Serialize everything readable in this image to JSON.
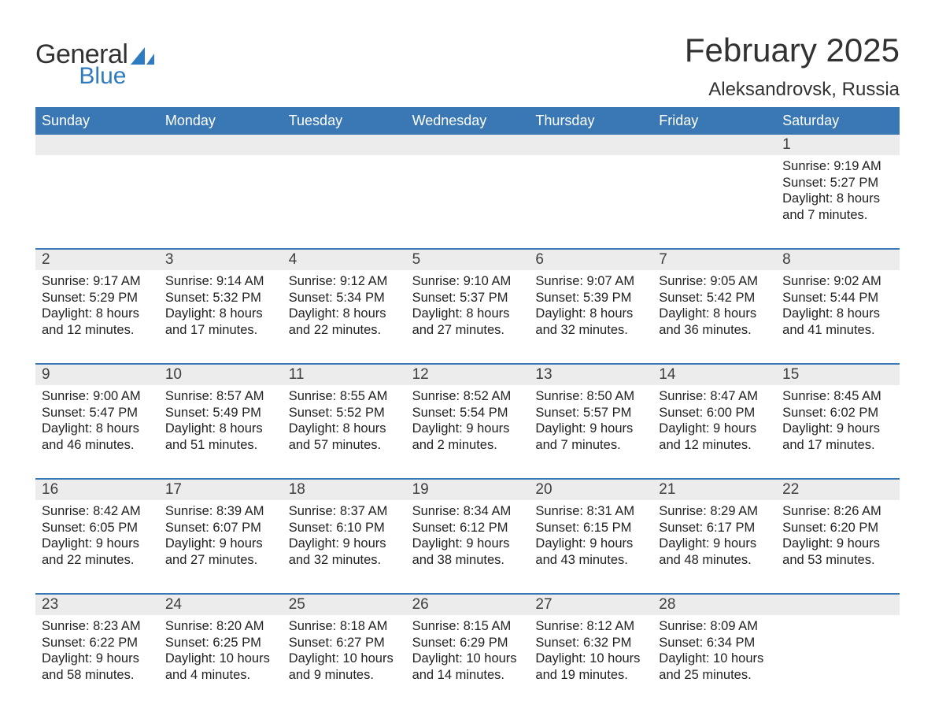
{
  "colors": {
    "header_bg": "#3a78b5",
    "header_text": "#ffffff",
    "daynum_bg": "#ececec",
    "text": "#222222",
    "divider": "#3a78b5",
    "logo_general": "#323232",
    "logo_blue": "#2f7bbf",
    "page_bg": "#ffffff"
  },
  "typography": {
    "title_fontsize": 42,
    "location_fontsize": 24,
    "dayname_fontsize": 18,
    "daynum_fontsize": 19,
    "body_fontsize": 16.5
  },
  "logo": {
    "general": "General",
    "blue": "Blue"
  },
  "title": "February 2025",
  "location": "Aleksandrovsk, Russia",
  "daynames": [
    "Sunday",
    "Monday",
    "Tuesday",
    "Wednesday",
    "Thursday",
    "Friday",
    "Saturday"
  ],
  "weeks": [
    {
      "nums": [
        "",
        "",
        "",
        "",
        "",
        "",
        "1"
      ],
      "cells": [
        {
          "sunrise": "",
          "sunset": "",
          "daylight": ""
        },
        {
          "sunrise": "",
          "sunset": "",
          "daylight": ""
        },
        {
          "sunrise": "",
          "sunset": "",
          "daylight": ""
        },
        {
          "sunrise": "",
          "sunset": "",
          "daylight": ""
        },
        {
          "sunrise": "",
          "sunset": "",
          "daylight": ""
        },
        {
          "sunrise": "",
          "sunset": "",
          "daylight": ""
        },
        {
          "sunrise": "Sunrise: 9:19 AM",
          "sunset": "Sunset: 5:27 PM",
          "daylight": "Daylight: 8 hours and 7 minutes."
        }
      ]
    },
    {
      "nums": [
        "2",
        "3",
        "4",
        "5",
        "6",
        "7",
        "8"
      ],
      "cells": [
        {
          "sunrise": "Sunrise: 9:17 AM",
          "sunset": "Sunset: 5:29 PM",
          "daylight": "Daylight: 8 hours and 12 minutes."
        },
        {
          "sunrise": "Sunrise: 9:14 AM",
          "sunset": "Sunset: 5:32 PM",
          "daylight": "Daylight: 8 hours and 17 minutes."
        },
        {
          "sunrise": "Sunrise: 9:12 AM",
          "sunset": "Sunset: 5:34 PM",
          "daylight": "Daylight: 8 hours and 22 minutes."
        },
        {
          "sunrise": "Sunrise: 9:10 AM",
          "sunset": "Sunset: 5:37 PM",
          "daylight": "Daylight: 8 hours and 27 minutes."
        },
        {
          "sunrise": "Sunrise: 9:07 AM",
          "sunset": "Sunset: 5:39 PM",
          "daylight": "Daylight: 8 hours and 32 minutes."
        },
        {
          "sunrise": "Sunrise: 9:05 AM",
          "sunset": "Sunset: 5:42 PM",
          "daylight": "Daylight: 8 hours and 36 minutes."
        },
        {
          "sunrise": "Sunrise: 9:02 AM",
          "sunset": "Sunset: 5:44 PM",
          "daylight": "Daylight: 8 hours and 41 minutes."
        }
      ]
    },
    {
      "nums": [
        "9",
        "10",
        "11",
        "12",
        "13",
        "14",
        "15"
      ],
      "cells": [
        {
          "sunrise": "Sunrise: 9:00 AM",
          "sunset": "Sunset: 5:47 PM",
          "daylight": "Daylight: 8 hours and 46 minutes."
        },
        {
          "sunrise": "Sunrise: 8:57 AM",
          "sunset": "Sunset: 5:49 PM",
          "daylight": "Daylight: 8 hours and 51 minutes."
        },
        {
          "sunrise": "Sunrise: 8:55 AM",
          "sunset": "Sunset: 5:52 PM",
          "daylight": "Daylight: 8 hours and 57 minutes."
        },
        {
          "sunrise": "Sunrise: 8:52 AM",
          "sunset": "Sunset: 5:54 PM",
          "daylight": "Daylight: 9 hours and 2 minutes."
        },
        {
          "sunrise": "Sunrise: 8:50 AM",
          "sunset": "Sunset: 5:57 PM",
          "daylight": "Daylight: 9 hours and 7 minutes."
        },
        {
          "sunrise": "Sunrise: 8:47 AM",
          "sunset": "Sunset: 6:00 PM",
          "daylight": "Daylight: 9 hours and 12 minutes."
        },
        {
          "sunrise": "Sunrise: 8:45 AM",
          "sunset": "Sunset: 6:02 PM",
          "daylight": "Daylight: 9 hours and 17 minutes."
        }
      ]
    },
    {
      "nums": [
        "16",
        "17",
        "18",
        "19",
        "20",
        "21",
        "22"
      ],
      "cells": [
        {
          "sunrise": "Sunrise: 8:42 AM",
          "sunset": "Sunset: 6:05 PM",
          "daylight": "Daylight: 9 hours and 22 minutes."
        },
        {
          "sunrise": "Sunrise: 8:39 AM",
          "sunset": "Sunset: 6:07 PM",
          "daylight": "Daylight: 9 hours and 27 minutes."
        },
        {
          "sunrise": "Sunrise: 8:37 AM",
          "sunset": "Sunset: 6:10 PM",
          "daylight": "Daylight: 9 hours and 32 minutes."
        },
        {
          "sunrise": "Sunrise: 8:34 AM",
          "sunset": "Sunset: 6:12 PM",
          "daylight": "Daylight: 9 hours and 38 minutes."
        },
        {
          "sunrise": "Sunrise: 8:31 AM",
          "sunset": "Sunset: 6:15 PM",
          "daylight": "Daylight: 9 hours and 43 minutes."
        },
        {
          "sunrise": "Sunrise: 8:29 AM",
          "sunset": "Sunset: 6:17 PM",
          "daylight": "Daylight: 9 hours and 48 minutes."
        },
        {
          "sunrise": "Sunrise: 8:26 AM",
          "sunset": "Sunset: 6:20 PM",
          "daylight": "Daylight: 9 hours and 53 minutes."
        }
      ]
    },
    {
      "nums": [
        "23",
        "24",
        "25",
        "26",
        "27",
        "28",
        ""
      ],
      "cells": [
        {
          "sunrise": "Sunrise: 8:23 AM",
          "sunset": "Sunset: 6:22 PM",
          "daylight": "Daylight: 9 hours and 58 minutes."
        },
        {
          "sunrise": "Sunrise: 8:20 AM",
          "sunset": "Sunset: 6:25 PM",
          "daylight": "Daylight: 10 hours and 4 minutes."
        },
        {
          "sunrise": "Sunrise: 8:18 AM",
          "sunset": "Sunset: 6:27 PM",
          "daylight": "Daylight: 10 hours and 9 minutes."
        },
        {
          "sunrise": "Sunrise: 8:15 AM",
          "sunset": "Sunset: 6:29 PM",
          "daylight": "Daylight: 10 hours and 14 minutes."
        },
        {
          "sunrise": "Sunrise: 8:12 AM",
          "sunset": "Sunset: 6:32 PM",
          "daylight": "Daylight: 10 hours and 19 minutes."
        },
        {
          "sunrise": "Sunrise: 8:09 AM",
          "sunset": "Sunset: 6:34 PM",
          "daylight": "Daylight: 10 hours and 25 minutes."
        },
        {
          "sunrise": "",
          "sunset": "",
          "daylight": ""
        }
      ]
    }
  ]
}
